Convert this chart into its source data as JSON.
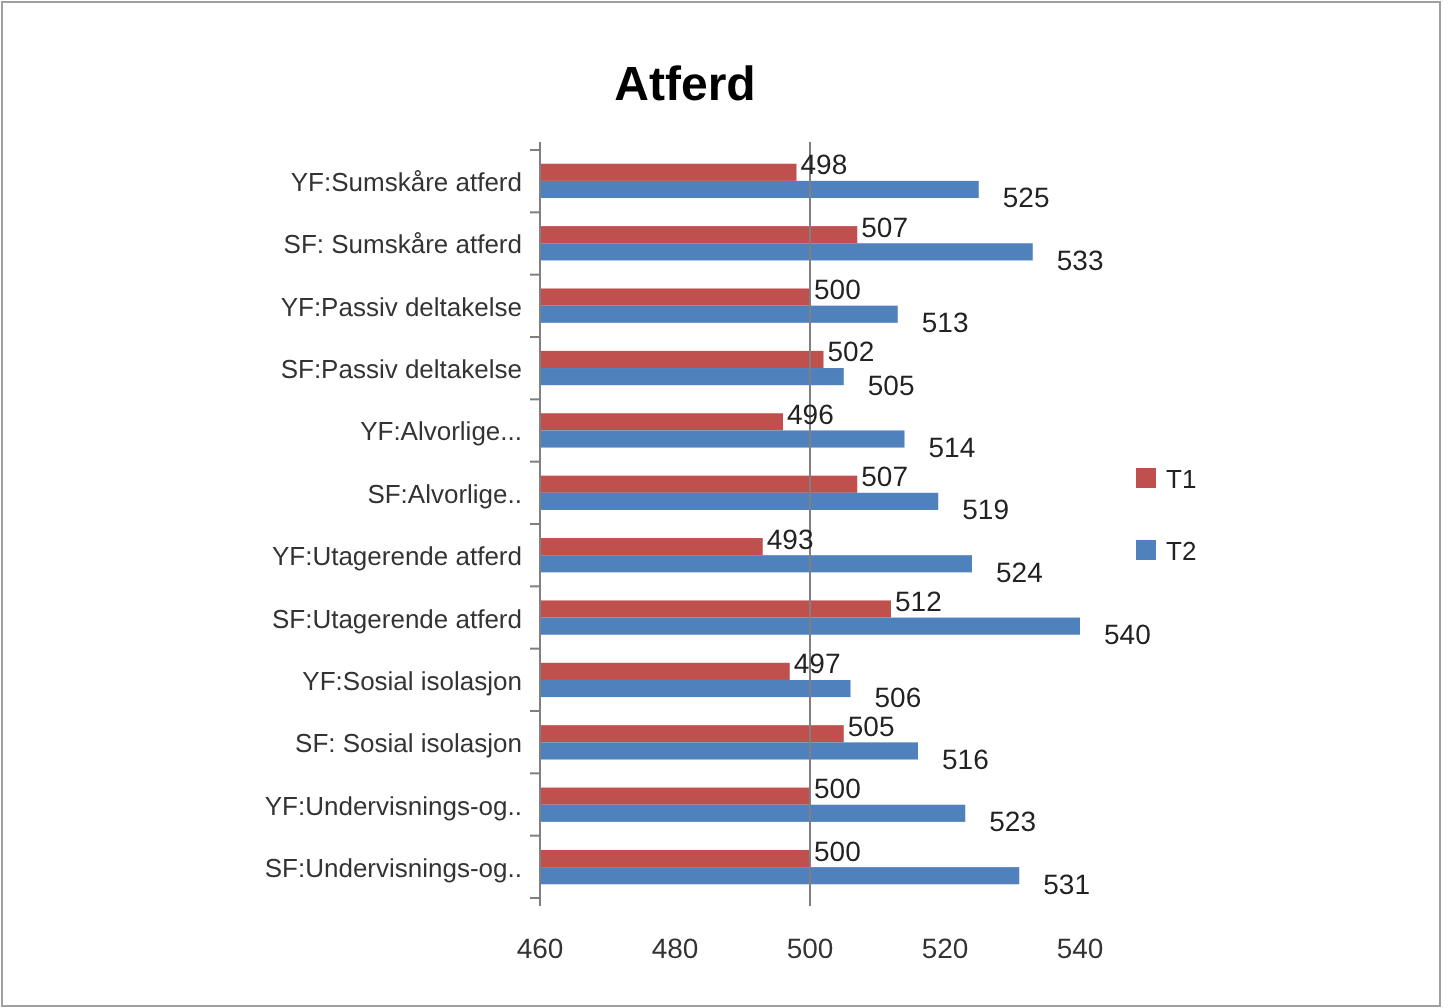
{
  "chart_data": {
    "type": "bar",
    "orientation": "horizontal",
    "title": "Atferd",
    "categories": [
      "YF:Sumskåre atferd",
      "SF: Sumskåre atferd",
      "YF:Passiv deltakelse",
      "SF:Passiv deltakelse",
      "YF:Alvorlige...",
      "SF:Alvorlige..",
      "YF:Utagerende atferd",
      "SF:Utagerende atferd",
      "YF:Sosial isolasjon",
      "SF: Sosial isolasjon",
      "YF:Undervisnings-og..",
      "SF:Undervisnings-og.."
    ],
    "series": [
      {
        "name": "T1",
        "color": "#c0504d",
        "values": [
          498,
          507,
          500,
          502,
          496,
          507,
          493,
          512,
          497,
          505,
          500,
          500
        ]
      },
      {
        "name": "T2",
        "color": "#4f81bd",
        "values": [
          525,
          533,
          513,
          505,
          514,
          519,
          524,
          540,
          506,
          516,
          523,
          531
        ]
      }
    ],
    "xlim": [
      460,
      540
    ],
    "xticks": [
      460,
      480,
      500,
      520,
      540
    ],
    "ref_lines": [
      {
        "axis": "x",
        "value": 500,
        "color": "#808080"
      }
    ],
    "data_labels": true,
    "legend": "right",
    "grid": false
  }
}
